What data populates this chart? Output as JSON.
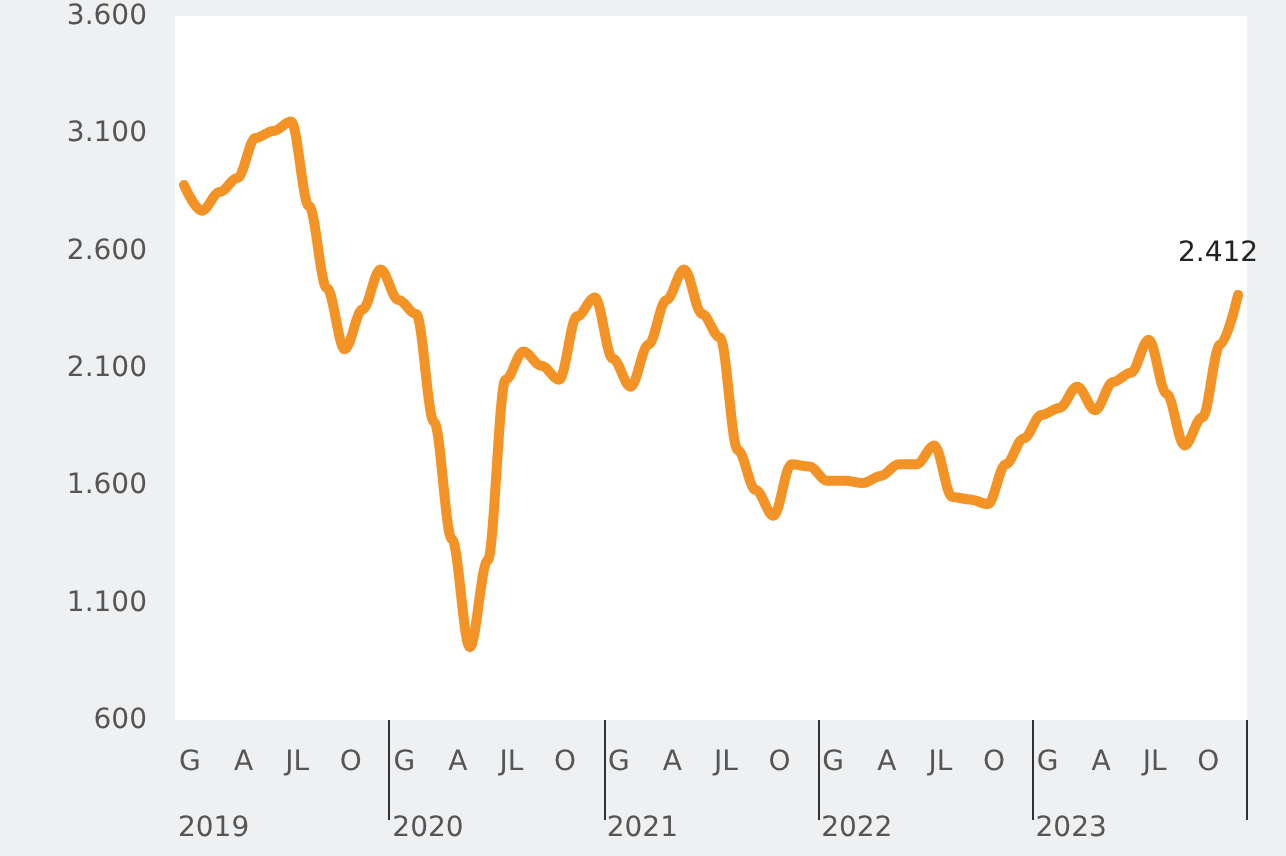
{
  "chart_data": {
    "type": "line",
    "categories": [
      "G",
      null,
      null,
      "A",
      null,
      null,
      "JL",
      null,
      null,
      "O",
      null,
      null,
      "G",
      null,
      null,
      "A",
      null,
      null,
      "JL",
      null,
      null,
      "O",
      null,
      null,
      "G",
      null,
      null,
      "A",
      null,
      null,
      "JL",
      null,
      null,
      "O",
      null,
      null,
      "G",
      null,
      null,
      "A",
      null,
      null,
      "JL",
      null,
      null,
      "O",
      null,
      null,
      "G",
      null,
      null,
      "A",
      null,
      null,
      "JL",
      null,
      null,
      "O",
      null,
      null
    ],
    "series": [
      {
        "color": "#f39325",
        "values": [
          2880,
          2770,
          2850,
          2910,
          3080,
          3110,
          3150,
          2790,
          2440,
          2180,
          2350,
          2520,
          2390,
          2330,
          1870,
          1370,
          910,
          1280,
          2050,
          2170,
          2110,
          2050,
          2320,
          2400,
          2140,
          2020,
          2200,
          2390,
          2520,
          2330,
          2230,
          1750,
          1580,
          1470,
          1690,
          1680,
          1620,
          1620,
          1610,
          1640,
          1690,
          1690,
          1770,
          1550,
          1540,
          1520,
          1690,
          1800,
          1900,
          1930,
          2020,
          1920,
          2040,
          2080,
          2220,
          1990,
          1770,
          1890,
          2200,
          2412
        ],
        "value_labels": [
          null,
          null,
          null,
          null,
          null,
          null,
          null,
          null,
          null,
          null,
          null,
          null,
          null,
          null,
          null,
          null,
          null,
          null,
          null,
          null,
          null,
          null,
          null,
          null,
          null,
          null,
          null,
          null,
          null,
          null,
          null,
          null,
          null,
          null,
          null,
          null,
          null,
          null,
          null,
          null,
          null,
          null,
          null,
          null,
          null,
          null,
          null,
          null,
          null,
          null,
          null,
          null,
          null,
          null,
          null,
          null,
          null,
          null,
          null,
          "2.412"
        ]
      }
    ],
    "ylim": [
      600,
      3600
    ],
    "yticks": [
      {
        "value": 600,
        "label": "600"
      },
      {
        "value": 1100,
        "label": "1.100"
      },
      {
        "value": 1600,
        "label": "1.600"
      },
      {
        "value": 2100,
        "label": "2.100"
      },
      {
        "value": 2600,
        "label": "2.600"
      },
      {
        "value": 3100,
        "label": "3.100"
      },
      {
        "value": 3600,
        "label": "3.600"
      }
    ],
    "annotations": [
      "2019",
      "2020",
      "2021",
      "2022",
      "2023"
    ],
    "grid": false,
    "marker": "none",
    "line_style": "solid"
  }
}
